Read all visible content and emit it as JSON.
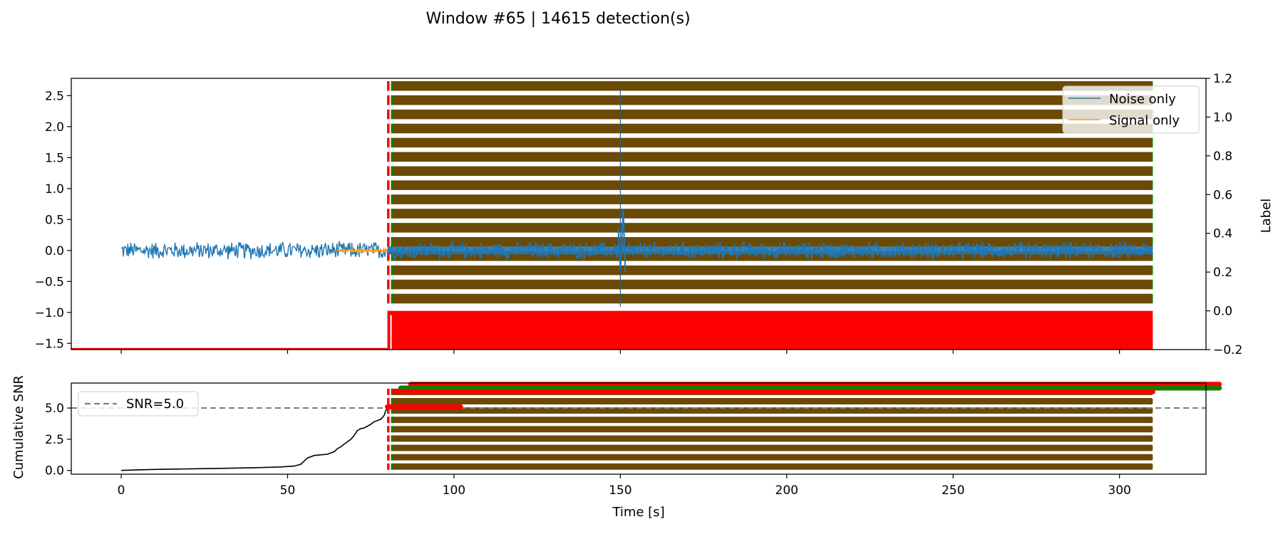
{
  "colors": {
    "noise": "#1f77b4",
    "signal": "#ff9f1c",
    "detection_fill": "#6b4a06",
    "detection_edge": "#1a7a00",
    "label_red": "#ff0000",
    "snr_threshold": "#808080",
    "cumulative_snr": "#000000"
  },
  "chart_data": [
    {
      "type": "line",
      "title": "Window #65 | 14615 detection(s)",
      "xlabel": "Time [s]",
      "ylabel": "",
      "y2label": "Label",
      "xlim": [
        -15,
        326
      ],
      "ylim": [
        -1.6,
        2.78
      ],
      "y2lim": [
        -0.2,
        1.2
      ],
      "x_ticks": [
        0,
        50,
        100,
        150,
        200,
        250,
        300
      ],
      "y_ticks": [
        {
          "value": -1.5,
          "label": "−1.5"
        },
        {
          "value": -1.0,
          "label": "−1.0"
        },
        {
          "value": -0.5,
          "label": "−0.5"
        },
        {
          "value": 0.0,
          "label": "0.0"
        },
        {
          "value": 0.5,
          "label": "0.5"
        },
        {
          "value": 1.0,
          "label": "1.0"
        },
        {
          "value": 1.5,
          "label": "1.5"
        },
        {
          "value": 2.0,
          "label": "2.0"
        },
        {
          "value": 2.5,
          "label": "2.5"
        }
      ],
      "y2_ticks": [
        {
          "value": -0.2,
          "label": "−0.2"
        },
        {
          "value": 0.0,
          "label": "0.0"
        },
        {
          "value": 0.2,
          "label": "0.2"
        },
        {
          "value": 0.4,
          "label": "0.4"
        },
        {
          "value": 0.6,
          "label": "0.6"
        },
        {
          "value": 0.8,
          "label": "0.8"
        },
        {
          "value": 1.0,
          "label": "1.0"
        },
        {
          "value": 1.2,
          "label": "1.2"
        }
      ],
      "legend": {
        "placement": "upper-right",
        "entries": [
          "Noise only",
          "Signal only"
        ]
      },
      "series": [
        {
          "name": "Noise only",
          "color": "#1f77b4",
          "x_range": [
            0,
            310
          ],
          "amplitude": 0.13
        },
        {
          "name": "Signal only",
          "color": "#ff9f1c",
          "x_range": [
            65,
            80
          ],
          "amplitude": 0.02
        }
      ],
      "detection_region": {
        "x_start": 80,
        "x_end": 310,
        "bands": 16
      },
      "label_step": {
        "x_start": 80,
        "x_end": 310,
        "low_value": -0.2,
        "high_value": 0.0
      },
      "spike_at_x": 150
    },
    {
      "type": "line",
      "xlabel": "Time [s]",
      "ylabel": "Cumulative SNR",
      "xlim": [
        -15,
        326
      ],
      "ylim": [
        -0.3,
        7.0
      ],
      "x_ticks": [
        0,
        50,
        100,
        150,
        200,
        250,
        300
      ],
      "y_ticks": [
        {
          "value": 0.0,
          "label": "0.0"
        },
        {
          "value": 2.5,
          "label": "2.5"
        },
        {
          "value": 5.0,
          "label": "5.0"
        }
      ],
      "threshold": {
        "value": 5.0,
        "label": "SNR=5.0"
      },
      "legend": {
        "placement": "upper-left",
        "entries": [
          "SNR=5.0"
        ]
      },
      "series": [
        {
          "name": "Cumulative SNR",
          "x": [
            0,
            5,
            10,
            20,
            30,
            40,
            48,
            52,
            54,
            55,
            56,
            58,
            60,
            62,
            64,
            65,
            66,
            67,
            68,
            69,
            70,
            71,
            72,
            73,
            74,
            75,
            76,
            77,
            78,
            79,
            79.5,
            80
          ],
          "y": [
            0.0,
            0.05,
            0.08,
            0.12,
            0.17,
            0.22,
            0.28,
            0.35,
            0.5,
            0.75,
            1.0,
            1.2,
            1.25,
            1.3,
            1.5,
            1.75,
            1.9,
            2.1,
            2.3,
            2.5,
            2.8,
            3.2,
            3.35,
            3.4,
            3.55,
            3.7,
            3.9,
            4.0,
            4.1,
            4.4,
            4.8,
            5.0
          ]
        }
      ],
      "detection_region": {
        "x_start": 80,
        "x_end": 310,
        "bands": 9
      },
      "marker_rows": [
        {
          "y": 6.9,
          "x_start": 87,
          "x_end": 330,
          "color": "#ff0000"
        },
        {
          "y": 6.6,
          "x_start": 84,
          "x_end": 330,
          "color": "#1a7a00"
        },
        {
          "y": 6.3,
          "x_start": 82,
          "x_end": 310,
          "color": "#ff0000"
        },
        {
          "y": 5.1,
          "x_start": 80,
          "x_end": 102,
          "color": "#ff0000"
        }
      ]
    }
  ]
}
